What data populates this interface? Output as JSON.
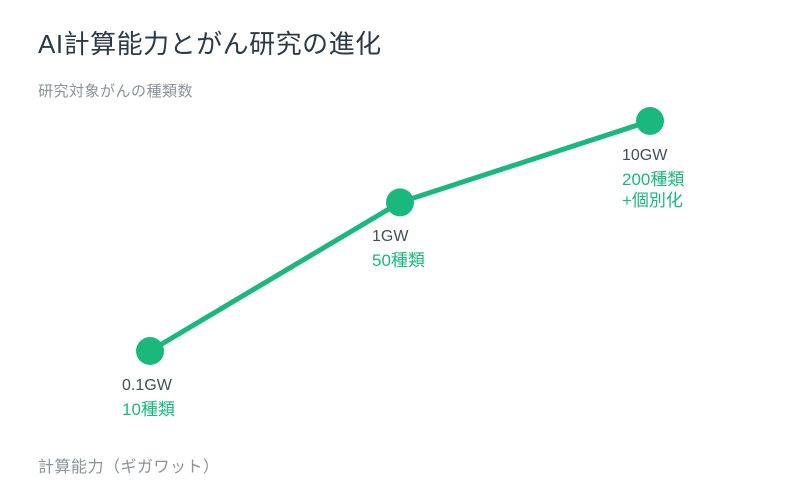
{
  "chart_data": {
    "type": "line",
    "title": "AI計算能力とがん研究の進化",
    "subtitle": "研究対象がんの種類数",
    "xlabel": "計算能力（ギガワット）",
    "x": [
      0.1,
      1,
      10
    ],
    "x_unit": "GW",
    "x_scale": "log",
    "y": [
      10,
      50,
      200
    ],
    "series_name": "研究対象がんの種類数",
    "grid": false,
    "legend": false,
    "points": [
      {
        "x_label": "0.1GW",
        "value_label": "10種類"
      },
      {
        "x_label": "1GW",
        "value_label": "50種類"
      },
      {
        "x_label": "10GW",
        "value_label": "200種類\n+個別化"
      }
    ]
  },
  "colors": {
    "green": "#1bb87d",
    "title": "#2c3a47",
    "point_label": "#42505a",
    "muted": "#8b929a",
    "background": "#ffffff"
  }
}
